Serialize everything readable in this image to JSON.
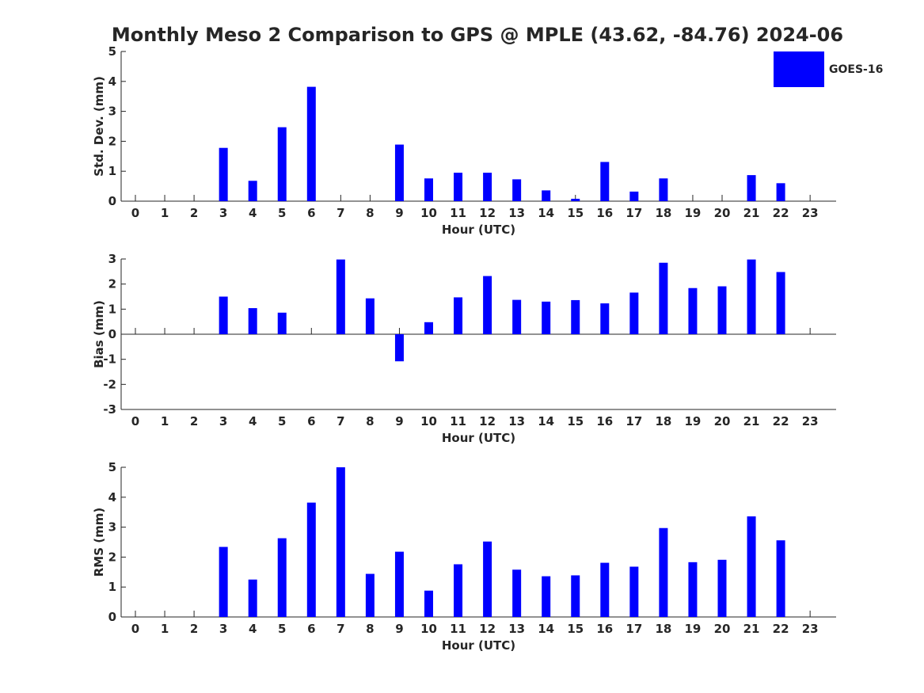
{
  "title": "Monthly Meso 2 Comparison to GPS @ MPLE (43.62, -84.76) 2024-06",
  "legend": {
    "label": "GOES-16",
    "color": "#0000FF",
    "placement": "top-right"
  },
  "chart_data": [
    {
      "type": "bar",
      "xlabel": "Hour (UTC)",
      "ylabel": "Std. Dev. (mm)",
      "ylim": [
        0,
        5
      ],
      "yticks": [
        "0",
        "1",
        "2",
        "3",
        "4",
        "5"
      ],
      "categories": [
        "0",
        "1",
        "2",
        "3",
        "4",
        "5",
        "6",
        "7",
        "8",
        "9",
        "10",
        "11",
        "12",
        "13",
        "14",
        "15",
        "16",
        "17",
        "18",
        "19",
        "20",
        "21",
        "22",
        "23"
      ],
      "values": [
        null,
        null,
        null,
        1.78,
        0.68,
        2.47,
        3.82,
        null,
        null,
        1.89,
        0.76,
        0.95,
        0.95,
        0.73,
        0.36,
        0.08,
        1.31,
        0.32,
        0.76,
        null,
        null,
        0.87,
        0.6,
        null
      ],
      "color": "#0000FF"
    },
    {
      "type": "bar",
      "xlabel": "Hour (UTC)",
      "ylabel": "Bias (mm)",
      "ylim": [
        -3,
        3
      ],
      "yticks": [
        "-3",
        "-2",
        "-1",
        "0",
        "1",
        "2",
        "3"
      ],
      "categories": [
        "0",
        "1",
        "2",
        "3",
        "4",
        "5",
        "6",
        "7",
        "8",
        "9",
        "10",
        "11",
        "12",
        "13",
        "14",
        "15",
        "16",
        "17",
        "18",
        "19",
        "20",
        "21",
        "22",
        "23"
      ],
      "values": [
        null,
        null,
        null,
        1.5,
        1.04,
        0.86,
        null,
        2.98,
        1.43,
        -1.08,
        0.48,
        1.47,
        2.32,
        1.37,
        1.3,
        1.36,
        1.23,
        1.66,
        2.85,
        1.84,
        1.91,
        2.98,
        2.48,
        null
      ],
      "color": "#0000FF"
    },
    {
      "type": "bar",
      "xlabel": "Hour (UTC)",
      "ylabel": "RMS (mm)",
      "ylim": [
        0,
        5
      ],
      "yticks": [
        "0",
        "1",
        "2",
        "3",
        "4",
        "5"
      ],
      "categories": [
        "0",
        "1",
        "2",
        "3",
        "4",
        "5",
        "6",
        "7",
        "8",
        "9",
        "10",
        "11",
        "12",
        "13",
        "14",
        "15",
        "16",
        "17",
        "18",
        "19",
        "20",
        "21",
        "22",
        "23"
      ],
      "values": [
        null,
        null,
        null,
        2.34,
        1.25,
        2.63,
        3.82,
        5.0,
        1.44,
        2.18,
        0.88,
        1.76,
        2.52,
        1.58,
        1.36,
        1.39,
        1.81,
        1.68,
        2.97,
        1.83,
        1.91,
        3.36,
        2.56,
        null
      ],
      "color": "#0000FF"
    }
  ]
}
